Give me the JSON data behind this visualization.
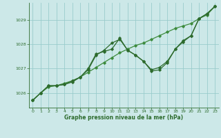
{
  "title": "Graphe pression niveau de la mer (hPa)",
  "background_color": "#cce8e8",
  "grid_color": "#99cccc",
  "line_color1": "#2d6b2d",
  "line_color2": "#3d8b3d",
  "xlim": [
    -0.5,
    23.5
  ],
  "ylim": [
    1025.4,
    1029.7
  ],
  "yticks": [
    1026,
    1027,
    1028,
    1029
  ],
  "xticks": [
    0,
    1,
    2,
    3,
    4,
    5,
    6,
    7,
    8,
    9,
    10,
    11,
    12,
    13,
    14,
    15,
    16,
    17,
    18,
    19,
    20,
    21,
    22,
    23
  ],
  "series_straight": {
    "x": [
      0,
      1,
      2,
      3,
      4,
      5,
      6,
      7,
      8,
      9,
      10,
      11,
      12,
      13,
      14,
      15,
      16,
      17,
      18,
      19,
      20,
      21,
      22,
      23
    ],
    "y": [
      1025.7,
      1026.0,
      1026.25,
      1026.3,
      1026.4,
      1026.5,
      1026.65,
      1026.85,
      1027.05,
      1027.25,
      1027.45,
      1027.65,
      1027.8,
      1027.95,
      1028.05,
      1028.2,
      1028.35,
      1028.5,
      1028.65,
      1028.75,
      1028.85,
      1029.05,
      1029.2,
      1029.55
    ]
  },
  "series_wave1": {
    "x": [
      0,
      1,
      2,
      3,
      4,
      5,
      6,
      7,
      8,
      9,
      10,
      11,
      12,
      13,
      14,
      15,
      16,
      17,
      18,
      19,
      20,
      21,
      22,
      23
    ],
    "y": [
      1025.7,
      1026.0,
      1026.3,
      1026.3,
      1026.35,
      1026.45,
      1026.65,
      1026.95,
      1027.55,
      1027.75,
      1028.05,
      1028.2,
      1027.75,
      1027.55,
      1027.3,
      1026.95,
      1027.05,
      1027.3,
      1027.8,
      1028.15,
      1028.35,
      1029.05,
      1029.25,
      1029.55
    ]
  },
  "series_wave2": {
    "x": [
      0,
      1,
      2,
      3,
      4,
      5,
      6,
      7,
      8,
      9,
      10,
      11,
      12,
      13,
      14,
      15,
      16,
      17,
      18,
      19,
      20,
      21,
      22,
      23
    ],
    "y": [
      1025.7,
      1026.0,
      1026.3,
      1026.3,
      1026.35,
      1026.5,
      1026.65,
      1027.0,
      1027.6,
      1027.7,
      1027.8,
      1028.25,
      1027.75,
      1027.55,
      1027.3,
      1026.9,
      1026.95,
      1027.25,
      1027.8,
      1028.1,
      1028.35,
      1029.05,
      1029.25,
      1029.55
    ]
  }
}
